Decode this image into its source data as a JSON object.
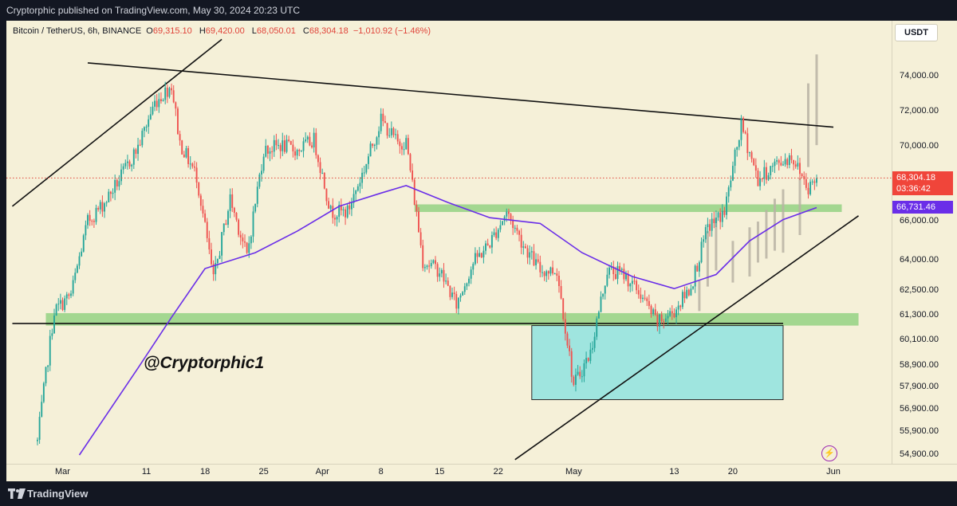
{
  "header": {
    "published": "Cryptorphic published on TradingView.com, May 30, 2024 20:23 UTC"
  },
  "symbol": {
    "name": "Bitcoin / TetherUS, 6h, BINANCE",
    "open_label": "O",
    "open": "69,315.10",
    "high_label": "H",
    "high": "69,420.00",
    "low_label": "L",
    "low": "68,050.01",
    "close_label": "C",
    "close": "68,304.18",
    "change": "−1,010.92 (−1.46%)"
  },
  "watermark": "@Cryptorphic1",
  "currency": "USDT",
  "price_tag": {
    "price": "68,304.18",
    "countdown": "03:36:42"
  },
  "ma_tag": {
    "value": "66,731.46"
  },
  "footer": {
    "brand": "TradingView"
  },
  "colors": {
    "up": "#26a69a",
    "down": "#ef5350",
    "ma": "#6a2ee8",
    "zone_green": "#8fd17e",
    "zone_cyan": "#8fe3e0",
    "background": "#f5f0d8"
  },
  "icons": {
    "bolt": "lightning-icon",
    "logo": "tradingview-logo-icon"
  },
  "chart_data": {
    "type": "candlestick",
    "title": "Bitcoin / TetherUS, 6h, BINANCE",
    "y_scale": "log",
    "yticks": [
      "74,000.00",
      "72,000.00",
      "70,000.00",
      "66,000.00",
      "64,000.00",
      "62,500.00",
      "61,300.00",
      "60,100.00",
      "58,900.00",
      "57,900.00",
      "56,900.00",
      "55,900.00",
      "54,900.00"
    ],
    "xticks": [
      "Mar",
      "11",
      "18",
      "25",
      "Apr",
      "8",
      "15",
      "22",
      "May",
      "13",
      "20",
      "Jun"
    ],
    "last_price": 68304.18,
    "moving_average_last": 66731.46,
    "price_path": [
      {
        "t": "2024-02-27",
        "p": 55500
      },
      {
        "t": "2024-02-29",
        "p": 61500
      },
      {
        "t": "2024-03-02",
        "p": 62300
      },
      {
        "t": "2024-03-04",
        "p": 66000
      },
      {
        "t": "2024-03-06",
        "p": 67000
      },
      {
        "t": "2024-03-08",
        "p": 68400
      },
      {
        "t": "2024-03-10",
        "p": 70000
      },
      {
        "t": "2024-03-12",
        "p": 72500
      },
      {
        "t": "2024-03-14",
        "p": 73500
      },
      {
        "t": "2024-03-15",
        "p": 70200
      },
      {
        "t": "2024-03-17",
        "p": 68400
      },
      {
        "t": "2024-03-19",
        "p": 63000
      },
      {
        "t": "2024-03-21",
        "p": 67200
      },
      {
        "t": "2024-03-23",
        "p": 64200
      },
      {
        "t": "2024-03-25",
        "p": 69800
      },
      {
        "t": "2024-03-27",
        "p": 70100
      },
      {
        "t": "2024-03-29",
        "p": 69800
      },
      {
        "t": "2024-03-31",
        "p": 70400
      },
      {
        "t": "2024-04-02",
        "p": 66500
      },
      {
        "t": "2024-04-04",
        "p": 66500
      },
      {
        "t": "2024-04-06",
        "p": 68800
      },
      {
        "t": "2024-04-08",
        "p": 71500
      },
      {
        "t": "2024-04-10",
        "p": 70200
      },
      {
        "t": "2024-04-11",
        "p": 70300
      },
      {
        "t": "2024-04-13",
        "p": 64000
      },
      {
        "t": "2024-04-15",
        "p": 63500
      },
      {
        "t": "2024-04-17",
        "p": 61800
      },
      {
        "t": "2024-04-19",
        "p": 63900
      },
      {
        "t": "2024-04-21",
        "p": 64900
      },
      {
        "t": "2024-04-23",
        "p": 66500
      },
      {
        "t": "2024-04-25",
        "p": 64800
      },
      {
        "t": "2024-04-27",
        "p": 63500
      },
      {
        "t": "2024-04-29",
        "p": 63500
      },
      {
        "t": "2024-05-01",
        "p": 58000
      },
      {
        "t": "2024-05-03",
        "p": 59500
      },
      {
        "t": "2024-05-05",
        "p": 63500
      },
      {
        "t": "2024-05-07",
        "p": 63300
      },
      {
        "t": "2024-05-09",
        "p": 62300
      },
      {
        "t": "2024-05-11",
        "p": 60900
      },
      {
        "t": "2024-05-13",
        "p": 61500
      },
      {
        "t": "2024-05-15",
        "p": 62700
      },
      {
        "t": "2024-05-17",
        "p": 65700
      },
      {
        "t": "2024-05-19",
        "p": 66500
      },
      {
        "t": "2024-05-21",
        "p": 71200
      },
      {
        "t": "2024-05-23",
        "p": 68200
      },
      {
        "t": "2024-05-25",
        "p": 69000
      },
      {
        "t": "2024-05-27",
        "p": 69500
      },
      {
        "t": "2024-05-29",
        "p": 67800
      },
      {
        "t": "2024-05-30",
        "p": 68304
      }
    ],
    "moving_average_path": [
      {
        "t": "2024-03-03",
        "p": 54900
      },
      {
        "t": "2024-03-10",
        "p": 58800
      },
      {
        "t": "2024-03-14",
        "p": 61200
      },
      {
        "t": "2024-03-18",
        "p": 63600
      },
      {
        "t": "2024-03-24",
        "p": 64400
      },
      {
        "t": "2024-03-29",
        "p": 65500
      },
      {
        "t": "2024-04-03",
        "p": 66800
      },
      {
        "t": "2024-04-08",
        "p": 67500
      },
      {
        "t": "2024-04-11",
        "p": 67900
      },
      {
        "t": "2024-04-16",
        "p": 67000
      },
      {
        "t": "2024-04-21",
        "p": 66200
      },
      {
        "t": "2024-04-27",
        "p": 65900
      },
      {
        "t": "2024-05-02",
        "p": 64400
      },
      {
        "t": "2024-05-08",
        "p": 63200
      },
      {
        "t": "2024-05-13",
        "p": 62600
      },
      {
        "t": "2024-05-18",
        "p": 63300
      },
      {
        "t": "2024-05-22",
        "p": 65000
      },
      {
        "t": "2024-05-26",
        "p": 66100
      },
      {
        "t": "2024-05-30",
        "p": 66731
      }
    ],
    "zones": [
      {
        "kind": "support",
        "from": 60800,
        "to": 61400,
        "t_start": "2024-02-28",
        "t_end": "2024-06-04"
      },
      {
        "kind": "support",
        "from": 66500,
        "to": 66900,
        "t_start": "2024-04-12",
        "t_end": "2024-06-02"
      },
      {
        "kind": "demand",
        "from": 57350,
        "to": 60800,
        "t_start": "2024-04-26",
        "t_end": "2024-05-26"
      }
    ],
    "trendlines": [
      {
        "from": {
          "t": "2024-02-24",
          "p": 66800
        },
        "to": {
          "t": "2024-03-20",
          "p": 76200
        }
      },
      {
        "from": {
          "t": "2024-03-04",
          "p": 74800
        },
        "to": {
          "t": "2024-06-01",
          "p": 71100
        }
      },
      {
        "from": {
          "t": "2024-02-24",
          "p": 60900
        },
        "to": {
          "t": "2024-05-26",
          "p": 60900
        }
      },
      {
        "from": {
          "t": "2024-04-24",
          "p": 54700
        },
        "to": {
          "t": "2024-06-04",
          "p": 66300
        }
      }
    ],
    "projection_bars": [
      {
        "t": "2024-05-16",
        "from": 61500,
        "to": 63000
      },
      {
        "t": "2024-05-17",
        "from": 62700,
        "to": 65500
      },
      {
        "t": "2024-05-18",
        "from": 63500,
        "to": 66200
      },
      {
        "t": "2024-05-20",
        "from": 62900,
        "to": 65000
      },
      {
        "t": "2024-05-22",
        "from": 63200,
        "to": 65700
      },
      {
        "t": "2024-05-23",
        "from": 63900,
        "to": 66000
      },
      {
        "t": "2024-05-24",
        "from": 64100,
        "to": 66600
      },
      {
        "t": "2024-05-25",
        "from": 64500,
        "to": 67200
      },
      {
        "t": "2024-05-26",
        "from": 64400,
        "to": 67700
      },
      {
        "t": "2024-05-28",
        "from": 65300,
        "to": 68300
      },
      {
        "t": "2024-05-29",
        "from": 68900,
        "to": 73600
      },
      {
        "t": "2024-05-30",
        "from": 70100,
        "to": 75300
      }
    ]
  }
}
